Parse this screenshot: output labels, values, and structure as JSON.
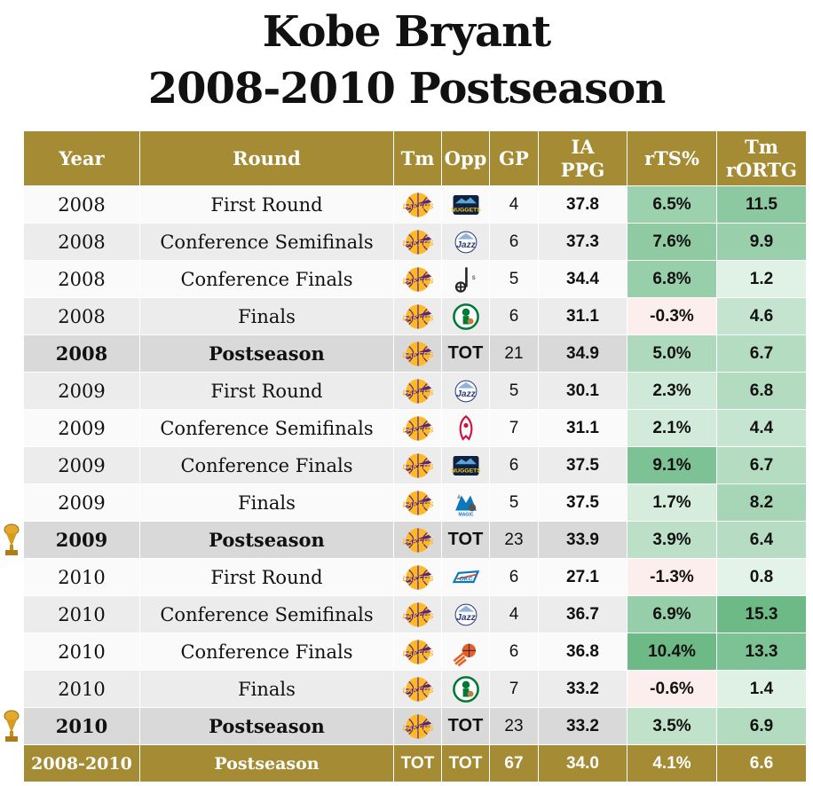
{
  "title": {
    "line1": "Kobe Bryant",
    "line2": "2008-2010 Postseason"
  },
  "columns": [
    "Year",
    "Round",
    "Tm",
    "Opp",
    "GP",
    "IA PPG",
    "rTS%",
    "Tm rORTG"
  ],
  "header": {
    "year": "Year",
    "round": "Round",
    "tm": "Tm",
    "opp": "Opp",
    "gp": "GP",
    "ia_1": "IA",
    "ia_2": "PPG",
    "rts": "rTS%",
    "tm_rortg_1": "Tm",
    "tm_rortg_2": "rORTG"
  },
  "rows": [
    {
      "year": "2008",
      "round": "First Round",
      "tm": "lakers-logo",
      "opp": "nuggets-logo",
      "gp": "4",
      "ppg": "37.8",
      "rts": "6.5%",
      "rortg": "11.5",
      "total": false,
      "trophy": false
    },
    {
      "year": "2008",
      "round": "Conference Semifinals",
      "tm": "lakers-logo",
      "opp": "jazz-logo",
      "gp": "6",
      "ppg": "37.3",
      "rts": "7.6%",
      "rortg": "9.9",
      "total": false,
      "trophy": false
    },
    {
      "year": "2008",
      "round": "Conference Finals",
      "tm": "lakers-logo",
      "opp": "spurs-logo",
      "gp": "5",
      "ppg": "34.4",
      "rts": "6.8%",
      "rortg": "1.2",
      "total": false,
      "trophy": false
    },
    {
      "year": "2008",
      "round": "Finals",
      "tm": "lakers-logo",
      "opp": "celtics-logo",
      "gp": "6",
      "ppg": "31.1",
      "rts": "-0.3%",
      "rortg": "4.6",
      "total": false,
      "trophy": false
    },
    {
      "year": "2008",
      "round": "Postseason",
      "tm": "lakers-logo",
      "opp": "TOT",
      "gp": "21",
      "ppg": "34.9",
      "rts": "5.0%",
      "rortg": "6.7",
      "total": true,
      "trophy": false
    },
    {
      "year": "2009",
      "round": "First Round",
      "tm": "lakers-logo",
      "opp": "jazz-logo",
      "gp": "5",
      "ppg": "30.1",
      "rts": "2.3%",
      "rortg": "6.8",
      "total": false,
      "trophy": false
    },
    {
      "year": "2009",
      "round": "Conference Semifinals",
      "tm": "lakers-logo",
      "opp": "rockets-logo",
      "gp": "7",
      "ppg": "31.1",
      "rts": "2.1%",
      "rortg": "4.4",
      "total": false,
      "trophy": false
    },
    {
      "year": "2009",
      "round": "Conference Finals",
      "tm": "lakers-logo",
      "opp": "nuggets-logo",
      "gp": "6",
      "ppg": "37.5",
      "rts": "9.1%",
      "rortg": "6.7",
      "total": false,
      "trophy": false
    },
    {
      "year": "2009",
      "round": "Finals",
      "tm": "lakers-logo",
      "opp": "magic-logo",
      "gp": "5",
      "ppg": "37.5",
      "rts": "1.7%",
      "rortg": "8.2",
      "total": false,
      "trophy": false
    },
    {
      "year": "2009",
      "round": "Postseason",
      "tm": "lakers-logo",
      "opp": "TOT",
      "gp": "23",
      "ppg": "33.9",
      "rts": "3.9%",
      "rortg": "6.4",
      "total": true,
      "trophy": true
    },
    {
      "year": "2010",
      "round": "First Round",
      "tm": "lakers-logo",
      "opp": "thunder-logo",
      "gp": "6",
      "ppg": "27.1",
      "rts": "-1.3%",
      "rortg": "0.8",
      "total": false,
      "trophy": false
    },
    {
      "year": "2010",
      "round": "Conference Semifinals",
      "tm": "lakers-logo",
      "opp": "jazz-logo",
      "gp": "4",
      "ppg": "36.7",
      "rts": "6.9%",
      "rortg": "15.3",
      "total": false,
      "trophy": false
    },
    {
      "year": "2010",
      "round": "Conference Finals",
      "tm": "lakers-logo",
      "opp": "suns-logo",
      "gp": "6",
      "ppg": "36.8",
      "rts": "10.4%",
      "rortg": "13.3",
      "total": false,
      "trophy": false
    },
    {
      "year": "2010",
      "round": "Finals",
      "tm": "lakers-logo",
      "opp": "celtics-logo",
      "gp": "7",
      "ppg": "33.2",
      "rts": "-0.6%",
      "rortg": "1.4",
      "total": false,
      "trophy": false
    },
    {
      "year": "2010",
      "round": "Postseason",
      "tm": "lakers-logo",
      "opp": "TOT",
      "gp": "23",
      "ppg": "33.2",
      "rts": "3.5%",
      "rortg": "6.9",
      "total": true,
      "trophy": true
    }
  ],
  "footer": {
    "year": "2008-2010",
    "round": "Postseason",
    "tm": "TOT",
    "opp": "TOT",
    "gp": "67",
    "ppg": "34.0",
    "rts": "4.1%",
    "rortg": "6.6"
  },
  "colors": {
    "header_gold": "#a58b33",
    "lakers_purple": "#552583",
    "lakers_gold": "#fdb927",
    "positive_strong": "#6dba87",
    "positive_light": "#eaf6ee",
    "negative_light": "#fbeeec"
  }
}
